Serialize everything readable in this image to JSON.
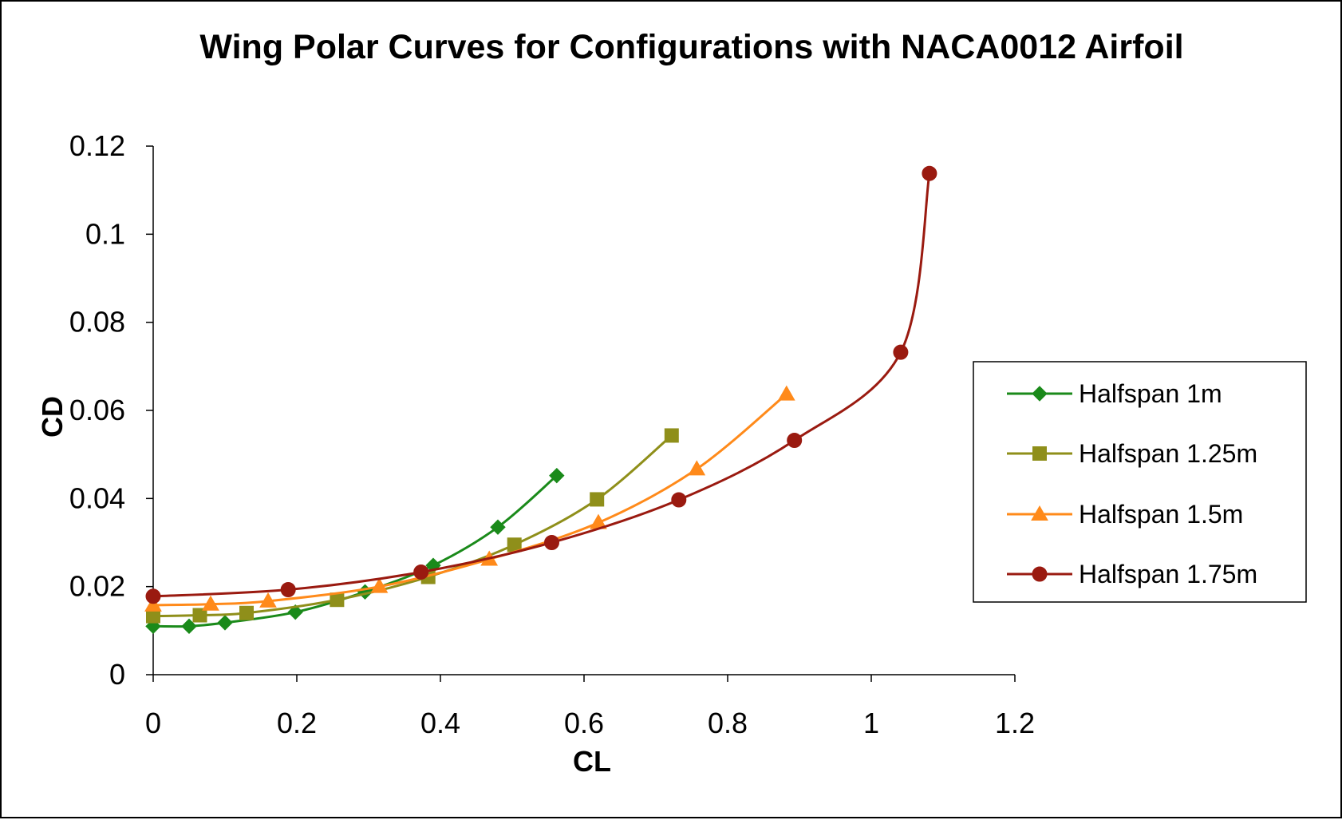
{
  "chart_data": {
    "type": "scatter",
    "title": "Wing Polar Curves for Configurations with NACA0012 Airfoil",
    "xlabel": "CL",
    "ylabel": "CD",
    "xlim": [
      0,
      1.2
    ],
    "ylim": [
      0,
      0.12
    ],
    "xticks": [
      "0",
      "0.2",
      "0.4",
      "0.6",
      "0.8",
      "1",
      "1.2"
    ],
    "yticks": [
      "0",
      "0.02",
      "0.04",
      "0.06",
      "0.08",
      "0.1",
      "0.12"
    ],
    "grid": false,
    "legend_position": "right",
    "series": [
      {
        "name": "Halfspan 1m",
        "color": "#1a8a1a",
        "marker": "diamond",
        "x": [
          0.0,
          0.05,
          0.1,
          0.198,
          0.295,
          0.39,
          0.48,
          0.562
        ],
        "y": [
          0.011,
          0.011,
          0.0118,
          0.0142,
          0.0188,
          0.0248,
          0.0335,
          0.0452
        ]
      },
      {
        "name": "Halfspan 1.25m",
        "color": "#8f8f1a",
        "marker": "square",
        "x": [
          0.0,
          0.065,
          0.13,
          0.256,
          0.383,
          0.503,
          0.618,
          0.722
        ],
        "y": [
          0.0133,
          0.0135,
          0.014,
          0.017,
          0.0222,
          0.0295,
          0.0398,
          0.0543
        ]
      },
      {
        "name": "Halfspan 1.5m",
        "color": "#ff8a1a",
        "marker": "triangle",
        "x": [
          0.0,
          0.08,
          0.16,
          0.315,
          0.468,
          0.62,
          0.757,
          0.882
        ],
        "y": [
          0.0158,
          0.016,
          0.0167,
          0.02,
          0.0262,
          0.0345,
          0.0467,
          0.0637
        ]
      },
      {
        "name": "Halfspan 1.75m",
        "color": "#9a1a10",
        "marker": "circle",
        "x": [
          0.0,
          0.188,
          0.373,
          0.555,
          0.732,
          0.893,
          1.041,
          1.081
        ],
        "y": [
          0.0178,
          0.0193,
          0.0233,
          0.03,
          0.0397,
          0.0532,
          0.0732,
          0.1138
        ]
      }
    ]
  }
}
